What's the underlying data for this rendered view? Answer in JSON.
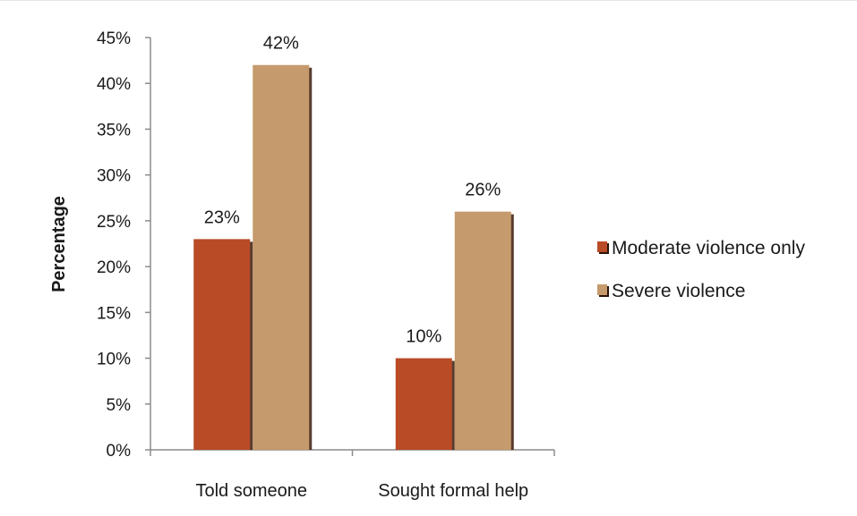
{
  "chart_data": {
    "type": "bar",
    "title": "",
    "xlabel": "",
    "ylabel": "Percentage",
    "ylim": [
      0,
      45
    ],
    "y_ticks": [
      "0%",
      "5%",
      "10%",
      "15%",
      "20%",
      "25%",
      "30%",
      "35%",
      "40%",
      "45%"
    ],
    "categories": [
      "Told someone",
      "Sought formal help"
    ],
    "series": [
      {
        "name": "Moderate violence only",
        "values": [
          23,
          10
        ],
        "labels": [
          "23%",
          "10%"
        ],
        "color": "#b94b27"
      },
      {
        "name": "Severe violence",
        "values": [
          42,
          26
        ],
        "labels": [
          "42%",
          "26%"
        ],
        "color": "#c59a6c"
      }
    ],
    "grid": false,
    "legend": "right"
  }
}
